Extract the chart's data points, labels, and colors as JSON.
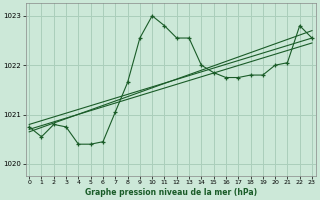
{
  "title": "Graphe pression niveau de la mer (hPa)",
  "background_color": "#cce8d8",
  "plot_bg_color": "#cce8d8",
  "grid_color": "#aacebb",
  "line_color": "#1a5c28",
  "ylim": [
    1019.75,
    1023.25
  ],
  "yticks": [
    1020,
    1021,
    1022,
    1023
  ],
  "xlim": [
    -0.3,
    23.3
  ],
  "xticks": [
    0,
    1,
    2,
    3,
    4,
    5,
    6,
    7,
    8,
    9,
    10,
    11,
    12,
    13,
    14,
    15,
    16,
    17,
    18,
    19,
    20,
    21,
    22,
    23
  ],
  "main_series_x": [
    0,
    1,
    2,
    3,
    4,
    5,
    6,
    7,
    8,
    9,
    10,
    11,
    12,
    13,
    14,
    15,
    16,
    17,
    18,
    19,
    20,
    21,
    22,
    23
  ],
  "main_series_y": [
    1020.75,
    1020.55,
    1020.8,
    1020.75,
    1020.4,
    1020.4,
    1020.45,
    1021.05,
    1021.65,
    1022.55,
    1023.0,
    1022.8,
    1022.55,
    1022.55,
    1022.0,
    1021.85,
    1021.75,
    1021.75,
    1021.8,
    1021.8,
    1022.0,
    1022.05,
    1022.8,
    1022.55
  ],
  "trend1_x": [
    0,
    23
  ],
  "trend1_y": [
    1020.8,
    1022.55
  ],
  "trend2_x": [
    0,
    23
  ],
  "trend2_y": [
    1020.7,
    1022.45
  ],
  "trend3_x": [
    0,
    23
  ],
  "trend3_y": [
    1020.65,
    1022.7
  ]
}
